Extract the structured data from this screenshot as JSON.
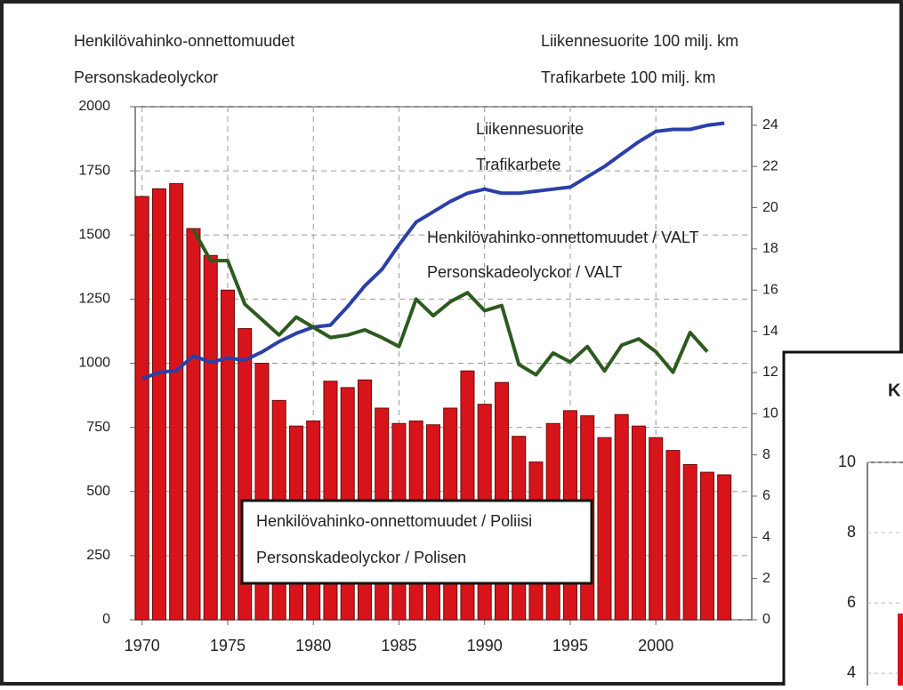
{
  "chart_data": [
    {
      "type": "bar",
      "y_label": [
        "Henkilövahinko-onnettomuudet",
        "Personskadeolyckor"
      ],
      "y2_label": [
        "Liikennesuorite 100 milj. km",
        "Trafikarbete 100 milj. km"
      ],
      "x": [
        1970,
        1971,
        1972,
        1973,
        1974,
        1975,
        1976,
        1977,
        1978,
        1979,
        1980,
        1981,
        1982,
        1983,
        1984,
        1985,
        1986,
        1987,
        1988,
        1989,
        1990,
        1991,
        1992,
        1993,
        1994,
        1995,
        1996,
        1997,
        1998,
        1999,
        2000,
        2001,
        2002,
        2003,
        2004
      ],
      "xlim": [
        1969.6,
        2005.6
      ],
      "xticks": [
        1970,
        1975,
        1980,
        1985,
        1990,
        1995,
        2000
      ],
      "ylim": [
        0,
        2000
      ],
      "yticks": [
        0,
        250,
        500,
        750,
        1000,
        1250,
        1500,
        1750,
        2000
      ],
      "y2lim": [
        0,
        24.9
      ],
      "y2ticks": [
        0,
        2,
        4,
        6,
        8,
        10,
        12,
        14,
        16,
        18,
        20,
        22,
        24
      ],
      "grid": true,
      "series": [
        {
          "name": [
            "Henkilövahinko-onnettomuudet / Poliisi",
            "Personskadeolyckor / Polisen"
          ],
          "type": "bar",
          "color": "#d8141b",
          "values": [
            1650,
            1680,
            1700,
            1525,
            1420,
            1285,
            1135,
            1000,
            855,
            755,
            775,
            930,
            905,
            935,
            825,
            765,
            775,
            760,
            825,
            970,
            840,
            925,
            715,
            615,
            765,
            815,
            795,
            710,
            800,
            755,
            710,
            660,
            605,
            575,
            565
          ]
        },
        {
          "name": [
            "Liikennesuorite",
            "Trafikarbete"
          ],
          "type": "line",
          "axis": "y2",
          "color": "#2b3fa8",
          "values": [
            11.7,
            12.0,
            12.1,
            12.8,
            12.5,
            12.7,
            12.6,
            13.0,
            13.5,
            13.9,
            14.2,
            14.3,
            15.2,
            16.2,
            17.0,
            18.2,
            19.3,
            19.8,
            20.3,
            20.7,
            20.9,
            20.7,
            20.7,
            20.8,
            20.9,
            21.0,
            21.5,
            22.0,
            22.6,
            23.2,
            23.7,
            23.8,
            23.8,
            24.0,
            24.1
          ]
        },
        {
          "name": [
            "Henkilövahinko-onnettomuudet / VALT",
            "Personskadeolyckor / VALT"
          ],
          "type": "line",
          "color": "#2d5a1e",
          "values": [
            null,
            null,
            null,
            1520,
            1400,
            1400,
            1230,
            1170,
            1110,
            1180,
            1140,
            1100,
            1110,
            1130,
            1100,
            1065,
            1250,
            1185,
            1240,
            1275,
            1205,
            1225,
            995,
            955,
            1040,
            1005,
            1065,
            970,
            1070,
            1095,
            1045,
            965,
            1120,
            1045,
            null
          ]
        }
      ]
    },
    {
      "type": "bar",
      "title": "K",
      "categories": [
        null
      ],
      "ylim": [
        3.65,
        10
      ],
      "yticks": [
        4,
        6,
        8,
        10
      ],
      "series": [
        {
          "type": "bar",
          "color": "#d8141b",
          "values": [
            5.7
          ]
        }
      ]
    }
  ]
}
